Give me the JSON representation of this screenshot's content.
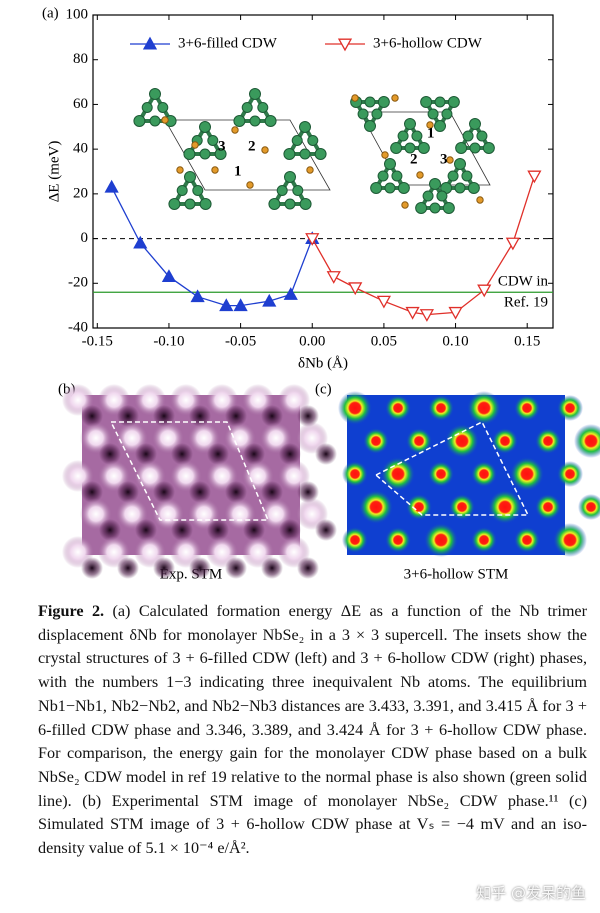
{
  "chart_data": {
    "type": "line",
    "panel_label": "(a)",
    "x_label": "δNb (Å)",
    "y_label": "ΔE (meV)",
    "xlim": [
      -0.153,
      0.168
    ],
    "ylim": [
      -40,
      100
    ],
    "xticks": [
      {
        "value": -0.15,
        "label": "-0.15"
      },
      {
        "value": -0.1,
        "label": "-0.10"
      },
      {
        "value": -0.05,
        "label": "-0.05"
      },
      {
        "value": 0,
        "label": "0.00"
      },
      {
        "value": 0.05,
        "label": "0.05"
      },
      {
        "value": 0.1,
        "label": "0.10"
      },
      {
        "value": 0.15,
        "label": "0.15"
      }
    ],
    "yticks": [
      -40,
      -20,
      0,
      20,
      40,
      60,
      80,
      100
    ],
    "legend": "top",
    "dashed_line": 0,
    "reference_line": {
      "value": -24,
      "color": "#2a9a2a",
      "label": [
        "CDW in",
        "Ref. 19"
      ]
    },
    "series": [
      {
        "name": "3+6-filled CDW",
        "color": "#1f3fd0",
        "marker": "triangle-up",
        "filled": true,
        "x": [
          -0.14,
          -0.12,
          -0.1,
          -0.08,
          -0.06,
          -0.05,
          -0.03,
          -0.015,
          0.0
        ],
        "values": [
          23,
          -2,
          -17,
          -26,
          -30,
          -30,
          -28,
          -25,
          0
        ]
      },
      {
        "name": "3+6-hollow CDW",
        "color": "#e0302a",
        "marker": "triangle-down",
        "filled": false,
        "x": [
          0.0,
          0.015,
          0.03,
          0.05,
          0.07,
          0.08,
          0.1,
          0.12,
          0.14,
          0.155
        ],
        "values": [
          0,
          -17,
          -22,
          -28,
          -33,
          -34,
          -33,
          -23,
          -2,
          28
        ]
      }
    ],
    "insets": {
      "left": [
        "3",
        "2",
        "1"
      ],
      "right": [
        "1",
        "2",
        "3"
      ]
    }
  },
  "panels": {
    "b": {
      "label": "(b)",
      "caption": "Exp. STM"
    },
    "c": {
      "label": "(c)",
      "caption": "3+6-hollow STM"
    }
  },
  "caption": {
    "label": "Figure 2.",
    "text": "(a) Calculated formation energy ΔE as a function of the Nb trimer displacement δNb for monolayer NbSe₂ in a 3 × 3 supercell. The insets show the crystal structures of 3 + 6-filled CDW (left) and 3 + 6-hollow CDW (right) phases, with the numbers 1−3 indicating three inequivalent Nb atoms. The equilibrium Nb1−Nb1, Nb2−Nb2, and Nb2−Nb3 distances are 3.433, 3.391, and 3.415 Å for 3 + 6-filled CDW phase and 3.346, 3.389, and 3.424 Å for 3 + 6-hollow CDW phase. For comparison, the energy gain for the monolayer CDW phase based on a bulk NbSe₂ CDW model in ref 19 relative to the normal phase is also shown (green solid line). (b) Experimental STM image of monolayer NbSe₂ CDW phase.¹¹ (c) Simulated STM image of 3 + 6-hollow CDW phase at Vₛ = −4 mV and an iso-density value of 5.1 × 10⁻⁴ e/Å²."
  },
  "watermark": "知乎 @发呆的鱼"
}
